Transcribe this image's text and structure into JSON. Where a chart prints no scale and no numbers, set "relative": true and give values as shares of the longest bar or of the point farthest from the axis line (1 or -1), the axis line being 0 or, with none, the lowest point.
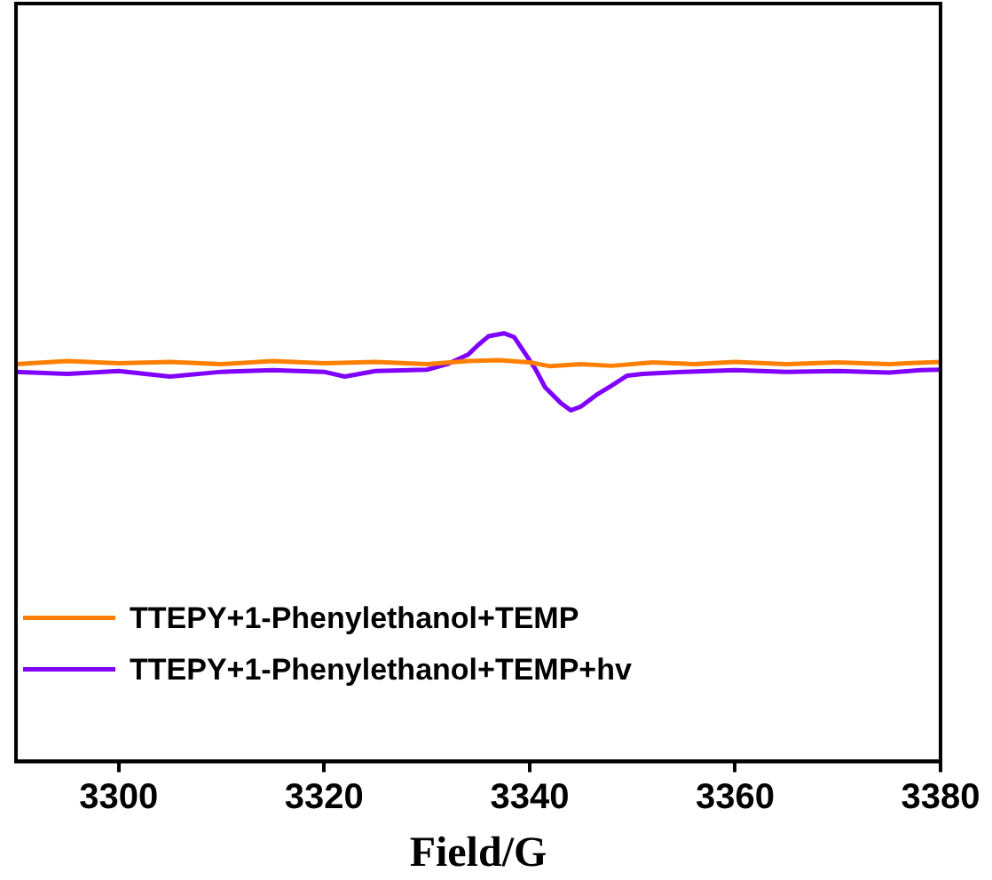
{
  "chart_data": {
    "type": "line",
    "xlabel": "Field/G",
    "relative": true,
    "xlim": [
      3290,
      3380
    ],
    "xticks": [
      3300,
      3320,
      3340,
      3360,
      3380
    ],
    "tick_labels": "x",
    "legend": "bottom left",
    "grid": false,
    "marker": "none",
    "line_style": "solid",
    "series": [
      {
        "name": "TTEPY+1-Phenylethanol+TEMP",
        "color": "#ff8000",
        "x": [
          3290,
          3295,
          3300,
          3305,
          3310,
          3315,
          3320,
          3325,
          3330,
          3334,
          3337,
          3340,
          3342,
          3345,
          3348,
          3352,
          3356,
          3360,
          3365,
          3370,
          3375,
          3380
        ],
        "values": [
          0.928,
          0.935,
          0.93,
          0.933,
          0.928,
          0.935,
          0.93,
          0.933,
          0.928,
          0.935,
          0.937,
          0.932,
          0.923,
          0.928,
          0.924,
          0.932,
          0.928,
          0.933,
          0.928,
          0.932,
          0.928,
          0.933
        ]
      },
      {
        "name": "TTEPY+1-Phenylethanol+TEMP+hv",
        "color": "#8000ff",
        "x": [
          3290,
          3295,
          3300,
          3305,
          3310,
          3315,
          3320,
          3322,
          3325,
          3330,
          3332,
          3334,
          3335,
          3336,
          3337.5,
          3338.5,
          3339.5,
          3340.5,
          3341.5,
          3343,
          3344,
          3345,
          3346.5,
          3348,
          3349.5,
          3351,
          3355,
          3360,
          3365,
          3370,
          3375,
          3378,
          3380
        ],
        "values": [
          0.91,
          0.905,
          0.912,
          0.899,
          0.91,
          0.914,
          0.91,
          0.899,
          0.912,
          0.915,
          0.928,
          0.95,
          0.973,
          0.993,
          1,
          0.991,
          0.955,
          0.919,
          0.874,
          0.838,
          0.82,
          0.829,
          0.856,
          0.878,
          0.901,
          0.905,
          0.91,
          0.914,
          0.91,
          0.912,
          0.908,
          0.914,
          0.915
        ]
      }
    ]
  }
}
